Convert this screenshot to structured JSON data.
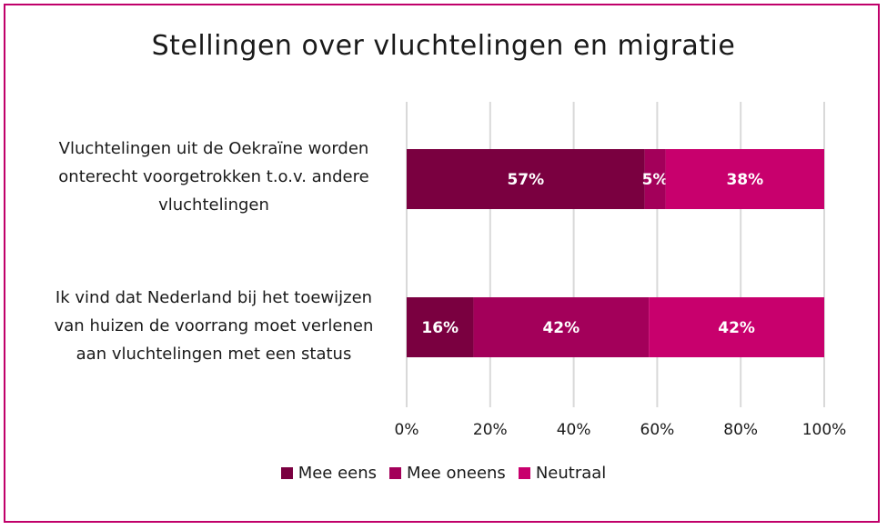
{
  "chart_data": {
    "type": "bar",
    "orientation": "horizontal",
    "stacked": true,
    "title": "Stellingen over vluchtelingen en migratie",
    "categories": [
      "Vluchtelingen uit de Oekraïne worden onterecht voorgetrokken t.o.v. andere vluchtelingen",
      "Ik vind dat Nederland bij het toewijzen van huizen de voorrang moet verlenen aan vluchtelingen met een status"
    ],
    "category_lines": [
      [
        "Vluchtelingen uit de Oekraïne worden",
        "onterecht voorgetrokken t.o.v. andere",
        "vluchtelingen"
      ],
      [
        "Ik vind dat Nederland bij het toewijzen",
        "van huizen de voorrang moet verlenen",
        "aan vluchtelingen met een status"
      ]
    ],
    "series": [
      {
        "name": "Mee eens",
        "values": [
          57,
          16
        ],
        "labels": [
          "57%",
          "16%"
        ],
        "color": "#7a0040"
      },
      {
        "name": "Mee oneens",
        "values": [
          5,
          42
        ],
        "labels": [
          "5%",
          "42%"
        ],
        "color": "#a3005a"
      },
      {
        "name": "Neutraal",
        "values": [
          38,
          42
        ],
        "labels": [
          "38%",
          "42%"
        ],
        "color": "#c8006d"
      }
    ],
    "xlim": [
      0,
      100
    ],
    "xticks": [
      "0%",
      "20%",
      "40%",
      "60%",
      "80%",
      "100%"
    ],
    "grid": true,
    "legend_position": "bottom"
  }
}
